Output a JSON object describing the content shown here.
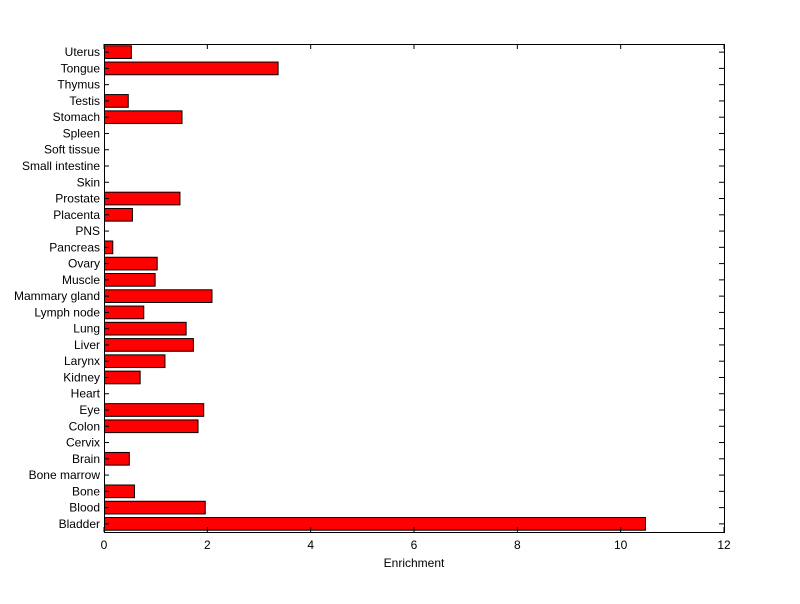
{
  "chart_data": {
    "type": "bar",
    "orientation": "horizontal",
    "title": "",
    "xlabel": "Enrichment",
    "ylabel": "",
    "xlim": [
      0,
      12
    ],
    "xticks": [
      0,
      2,
      4,
      6,
      8,
      10,
      12
    ],
    "grid": false,
    "bar_color": "#ff0000",
    "bar_edge_color": "#000000",
    "categories": [
      "Bladder",
      "Blood",
      "Bone",
      "Bone marrow",
      "Brain",
      "Cervix",
      "Colon",
      "Eye",
      "Heart",
      "Kidney",
      "Larynx",
      "Liver",
      "Lung",
      "Lymph node",
      "Mammary gland",
      "Muscle",
      "Ovary",
      "Pancreas",
      "PNS",
      "Placenta",
      "Prostate",
      "Skin",
      "Small intestine",
      "Soft tissue",
      "Spleen",
      "Stomach",
      "Testis",
      "Thymus",
      "Tongue",
      "Uterus"
    ],
    "values": [
      10.47,
      1.95,
      0.58,
      0,
      0.48,
      0,
      1.81,
      1.92,
      0,
      0.69,
      1.17,
      1.72,
      1.58,
      0.76,
      2.08,
      0.98,
      1.02,
      0.16,
      0,
      0.54,
      1.46,
      0,
      0,
      0,
      0,
      1.5,
      0.46,
      0,
      3.36,
      0.52
    ]
  }
}
